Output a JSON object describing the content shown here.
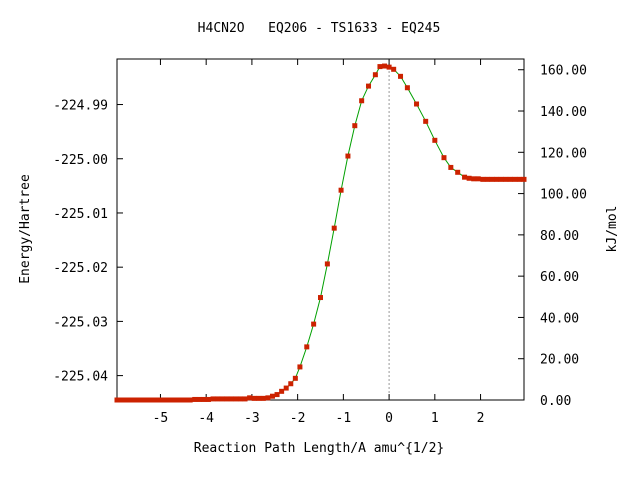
{
  "chart_data": {
    "type": "line",
    "title": "H4CN2O   EQ206 - TS1633 - EQ245",
    "xlabel": "Reaction Path Length/A amu^{1/2}",
    "ylabel": "Energy/Hartree",
    "y2label": "kJ/mol",
    "xlim": [
      -5.95,
      2.95
    ],
    "ylim": [
      -225.0445,
      -224.9816
    ],
    "y2lim": [
      0,
      165.2
    ],
    "x_ticks": [
      -5,
      -4,
      -3,
      -2,
      -1,
      0,
      1,
      2
    ],
    "x_tick_labels": [
      "-5",
      "-4",
      "-3",
      "-2",
      "-1",
      "0",
      "1",
      "2"
    ],
    "y_ticks": [
      -224.99,
      -225.0,
      -225.01,
      -225.02,
      -225.03,
      -225.04
    ],
    "y_tick_labels": [
      "-224.99",
      "-225.00",
      "-225.01",
      "-225.02",
      "-225.03",
      "-225.04"
    ],
    "y2_ticks": [
      0,
      20,
      40,
      60,
      80,
      100,
      120,
      140,
      160
    ],
    "y2_tick_labels": [
      "0.00",
      "20.00",
      "40.00",
      "60.00",
      "80.00",
      "100.00",
      "120.00",
      "140.00",
      "160.00"
    ],
    "ts_x": 0.0,
    "line_color": "#00a000",
    "marker_color": "#cc2200",
    "ts_line_color": "#999999",
    "series": [
      {
        "x": [
          -5.95,
          -5.85,
          -5.75,
          -5.65,
          -5.55,
          -5.45,
          -5.35,
          -5.25,
          -5.15,
          -5.05,
          -4.95,
          -4.85,
          -4.75,
          -4.65,
          -4.55,
          -4.45,
          -4.35,
          -4.25,
          -4.15,
          -4.05,
          -3.95,
          -3.85,
          -3.75,
          -3.65,
          -3.55,
          -3.45,
          -3.35,
          -3.25,
          -3.15,
          -3.05,
          -2.95,
          -2.85,
          -2.75,
          -2.65,
          -2.55,
          -2.45,
          -2.35,
          -2.25,
          -2.15,
          -2.05,
          -1.95,
          -1.8,
          -1.65,
          -1.5,
          -1.35,
          -1.2,
          -1.05,
          -0.9,
          -0.75,
          -0.6,
          -0.45,
          -0.3,
          -0.2,
          -0.1,
          0.0,
          0.1,
          0.25,
          0.4,
          0.6,
          0.8,
          1.0,
          1.2,
          1.35,
          1.5,
          1.65,
          1.75,
          1.85,
          1.95,
          2.05,
          2.15,
          2.25,
          2.35,
          2.45,
          2.55,
          2.65,
          2.75,
          2.85,
          2.95
        ],
        "y": [
          -225.0445,
          -225.0445,
          -225.0445,
          -225.0445,
          -225.0445,
          -225.0445,
          -225.0445,
          -225.0445,
          -225.0445,
          -225.0445,
          -225.0445,
          -225.0445,
          -225.0445,
          -225.0445,
          -225.0445,
          -225.0445,
          -225.0445,
          -225.0444,
          -225.0444,
          -225.0444,
          -225.0444,
          -225.0443,
          -225.0443,
          -225.0443,
          -225.0443,
          -225.0443,
          -225.0443,
          -225.0443,
          -225.0443,
          -225.0441,
          -225.0442,
          -225.0442,
          -225.0442,
          -225.0441,
          -225.0438,
          -225.0435,
          -225.0429,
          -225.0423,
          -225.0415,
          -225.0405,
          -225.0384,
          -225.0347,
          -225.0305,
          -225.0256,
          -225.0194,
          -225.0128,
          -225.0058,
          -224.9995,
          -224.9939,
          -224.9893,
          -224.9866,
          -224.9845,
          -224.983,
          -224.9829,
          -224.9831,
          -224.9835,
          -224.9848,
          -224.9869,
          -224.9899,
          -224.9931,
          -224.9966,
          -224.9998,
          -225.0016,
          -225.0025,
          -225.0034,
          -225.0036,
          -225.0037,
          -225.0037,
          -225.0038,
          -225.0038,
          -225.0038,
          -225.0038,
          -225.0038,
          -225.0038,
          -225.0038,
          -225.0038,
          -225.0038,
          -225.0038
        ]
      }
    ]
  }
}
